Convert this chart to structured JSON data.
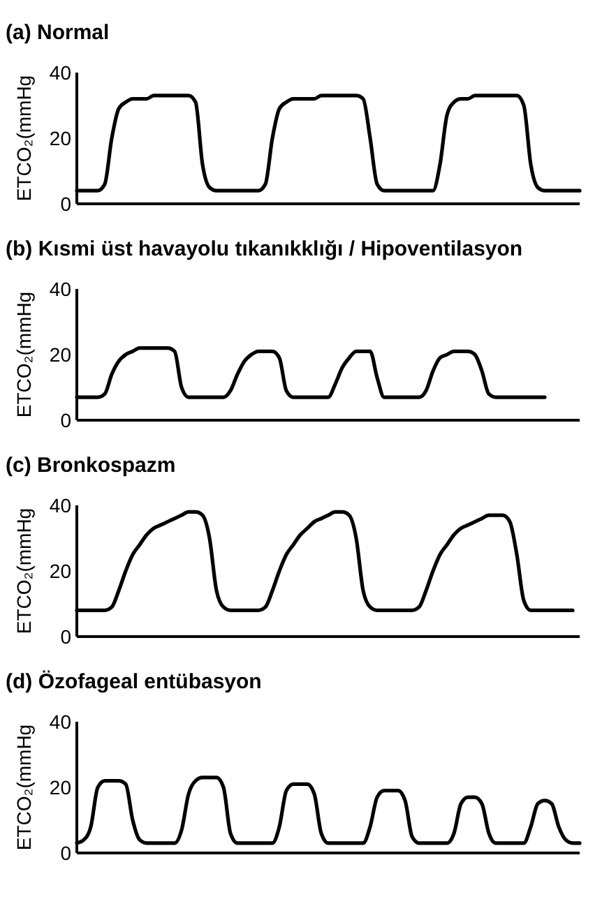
{
  "chart_data": [
    {
      "type": "line",
      "title": "(a) Normal",
      "ylabel": "ETCO₂(mmHg",
      "ylim": [
        0,
        40
      ],
      "yticks": [
        0,
        20,
        40
      ],
      "tick_labels": "y",
      "categories": [
        null,
        null,
        null,
        null,
        null,
        null,
        null,
        null,
        null,
        null,
        null,
        null,
        null,
        null,
        null,
        null,
        null,
        null,
        null,
        null,
        null,
        null,
        null,
        null,
        null,
        null,
        null,
        null,
        null,
        null,
        null,
        null,
        null,
        null,
        null,
        null,
        null,
        null,
        null,
        null,
        null,
        null,
        null,
        null,
        null,
        null,
        null,
        null,
        null,
        null,
        null,
        null,
        null,
        null,
        null,
        null,
        null,
        null,
        null,
        null,
        null,
        null,
        null,
        null,
        null,
        null,
        null,
        null,
        null,
        null,
        null,
        null,
        null
      ],
      "series": [
        {
          "color": "#000000",
          "values": [
            4,
            4,
            4,
            4,
            6,
            20,
            29,
            31,
            32,
            32,
            32,
            33,
            33,
            33,
            33,
            33,
            33,
            31,
            12,
            5,
            4,
            4,
            4,
            4,
            4,
            4,
            4,
            6,
            20,
            29,
            31,
            32,
            32,
            32,
            32,
            33,
            33,
            33,
            33,
            33,
            33,
            32,
            20,
            6,
            4,
            4,
            4,
            4,
            4,
            4,
            4,
            4,
            12,
            27,
            31,
            32,
            32,
            33,
            33,
            33,
            33,
            33,
            33,
            33,
            30,
            12,
            5,
            4,
            4,
            4,
            4,
            4,
            4
          ]
        }
      ]
    },
    {
      "type": "line",
      "title": "(b) Kısmi üst havayolu tıkanıkklığı / Hipoventilasyon",
      "ylabel": "ETCO₂(mmHg",
      "ylim": [
        0,
        40
      ],
      "yticks": [
        0,
        20,
        40
      ],
      "tick_labels": "y",
      "categories": [
        null,
        null,
        null,
        null,
        null,
        null,
        null,
        null,
        null,
        null,
        null,
        null,
        null,
        null,
        null,
        null,
        null,
        null,
        null,
        null,
        null,
        null,
        null,
        null,
        null,
        null,
        null,
        null,
        null,
        null,
        null,
        null,
        null,
        null,
        null,
        null,
        null,
        null,
        null,
        null,
        null,
        null,
        null,
        null,
        null,
        null,
        null,
        null,
        null,
        null,
        null,
        null,
        null,
        null,
        null,
        null,
        null,
        null,
        null,
        null,
        null,
        null,
        null,
        null,
        null,
        null,
        null,
        null,
        null,
        null,
        null,
        null,
        null
      ],
      "series": [
        {
          "color": "#000000",
          "values": [
            7,
            7,
            7,
            7,
            8,
            14,
            18,
            20,
            21,
            22,
            22,
            22,
            22,
            22,
            21,
            10,
            7,
            7,
            7,
            7,
            7,
            7,
            9,
            14,
            18,
            20,
            21,
            21,
            21,
            19,
            9,
            7,
            7,
            7,
            7,
            7,
            7,
            11,
            16,
            19,
            21,
            21,
            21,
            13,
            7,
            7,
            7,
            7,
            7,
            7,
            9,
            15,
            19,
            20,
            21,
            21,
            21,
            20,
            15,
            8,
            7,
            7,
            7,
            7,
            7,
            7,
            7,
            7,
            null,
            null,
            null,
            null,
            null
          ]
        }
      ]
    },
    {
      "type": "line",
      "title": "(c) Bronkospazm",
      "ylabel": "ETCO₂(mmHg",
      "ylim": [
        0,
        40
      ],
      "yticks": [
        0,
        20,
        40
      ],
      "tick_labels": "y",
      "categories": [
        null,
        null,
        null,
        null,
        null,
        null,
        null,
        null,
        null,
        null,
        null,
        null,
        null,
        null,
        null,
        null,
        null,
        null,
        null,
        null,
        null,
        null,
        null,
        null,
        null,
        null,
        null,
        null,
        null,
        null,
        null,
        null,
        null,
        null,
        null,
        null,
        null,
        null,
        null,
        null,
        null,
        null,
        null,
        null,
        null,
        null,
        null,
        null,
        null,
        null,
        null,
        null,
        null,
        null,
        null,
        null,
        null,
        null,
        null,
        null,
        null,
        null,
        null,
        null,
        null,
        null,
        null,
        null,
        null,
        null,
        null,
        null,
        null
      ],
      "series": [
        {
          "color": "#000000",
          "values": [
            8,
            8,
            8,
            8,
            8,
            9,
            14,
            20,
            25,
            28,
            31,
            33,
            34,
            35,
            36,
            37,
            38,
            38,
            37,
            30,
            14,
            9,
            8,
            8,
            8,
            8,
            8,
            9,
            14,
            20,
            25,
            28,
            31,
            33,
            35,
            36,
            37,
            38,
            38,
            37,
            30,
            14,
            9,
            8,
            8,
            8,
            8,
            8,
            8,
            9,
            14,
            20,
            25,
            28,
            31,
            33,
            34,
            35,
            36,
            37,
            37,
            37,
            35,
            25,
            11,
            8,
            8,
            8,
            8,
            8,
            8,
            8,
            null
          ]
        }
      ]
    },
    {
      "type": "line",
      "title": "(d) Özofageal entübasyon",
      "ylabel": "ETCO₂(mmHg",
      "ylim": [
        0,
        40
      ],
      "yticks": [
        0,
        20,
        40
      ],
      "tick_labels": "y",
      "categories": [
        null,
        null,
        null,
        null,
        null,
        null,
        null,
        null,
        null,
        null,
        null,
        null,
        null,
        null,
        null,
        null,
        null,
        null,
        null,
        null,
        null,
        null,
        null,
        null,
        null,
        null,
        null,
        null,
        null,
        null,
        null,
        null,
        null,
        null,
        null,
        null,
        null,
        null,
        null,
        null,
        null,
        null,
        null,
        null,
        null,
        null,
        null,
        null,
        null,
        null,
        null,
        null,
        null,
        null,
        null,
        null,
        null,
        null,
        null,
        null,
        null,
        null,
        null,
        null,
        null,
        null,
        null,
        null,
        null,
        null,
        null,
        null,
        null
      ],
      "series": [
        {
          "color": "#000000",
          "values": [
            3,
            4,
            8,
            20,
            22,
            22,
            22,
            21,
            10,
            4,
            3,
            3,
            3,
            3,
            3,
            7,
            18,
            22,
            23,
            23,
            23,
            20,
            6,
            3,
            3,
            3,
            3,
            3,
            3,
            8,
            19,
            21,
            21,
            21,
            18,
            6,
            3,
            3,
            3,
            3,
            3,
            3,
            8,
            17,
            19,
            19,
            19,
            16,
            5,
            3,
            3,
            3,
            3,
            3,
            6,
            15,
            17,
            17,
            15,
            6,
            3,
            3,
            3,
            3,
            3,
            8,
            15,
            16,
            15,
            8,
            4,
            3,
            3
          ]
        }
      ]
    }
  ]
}
